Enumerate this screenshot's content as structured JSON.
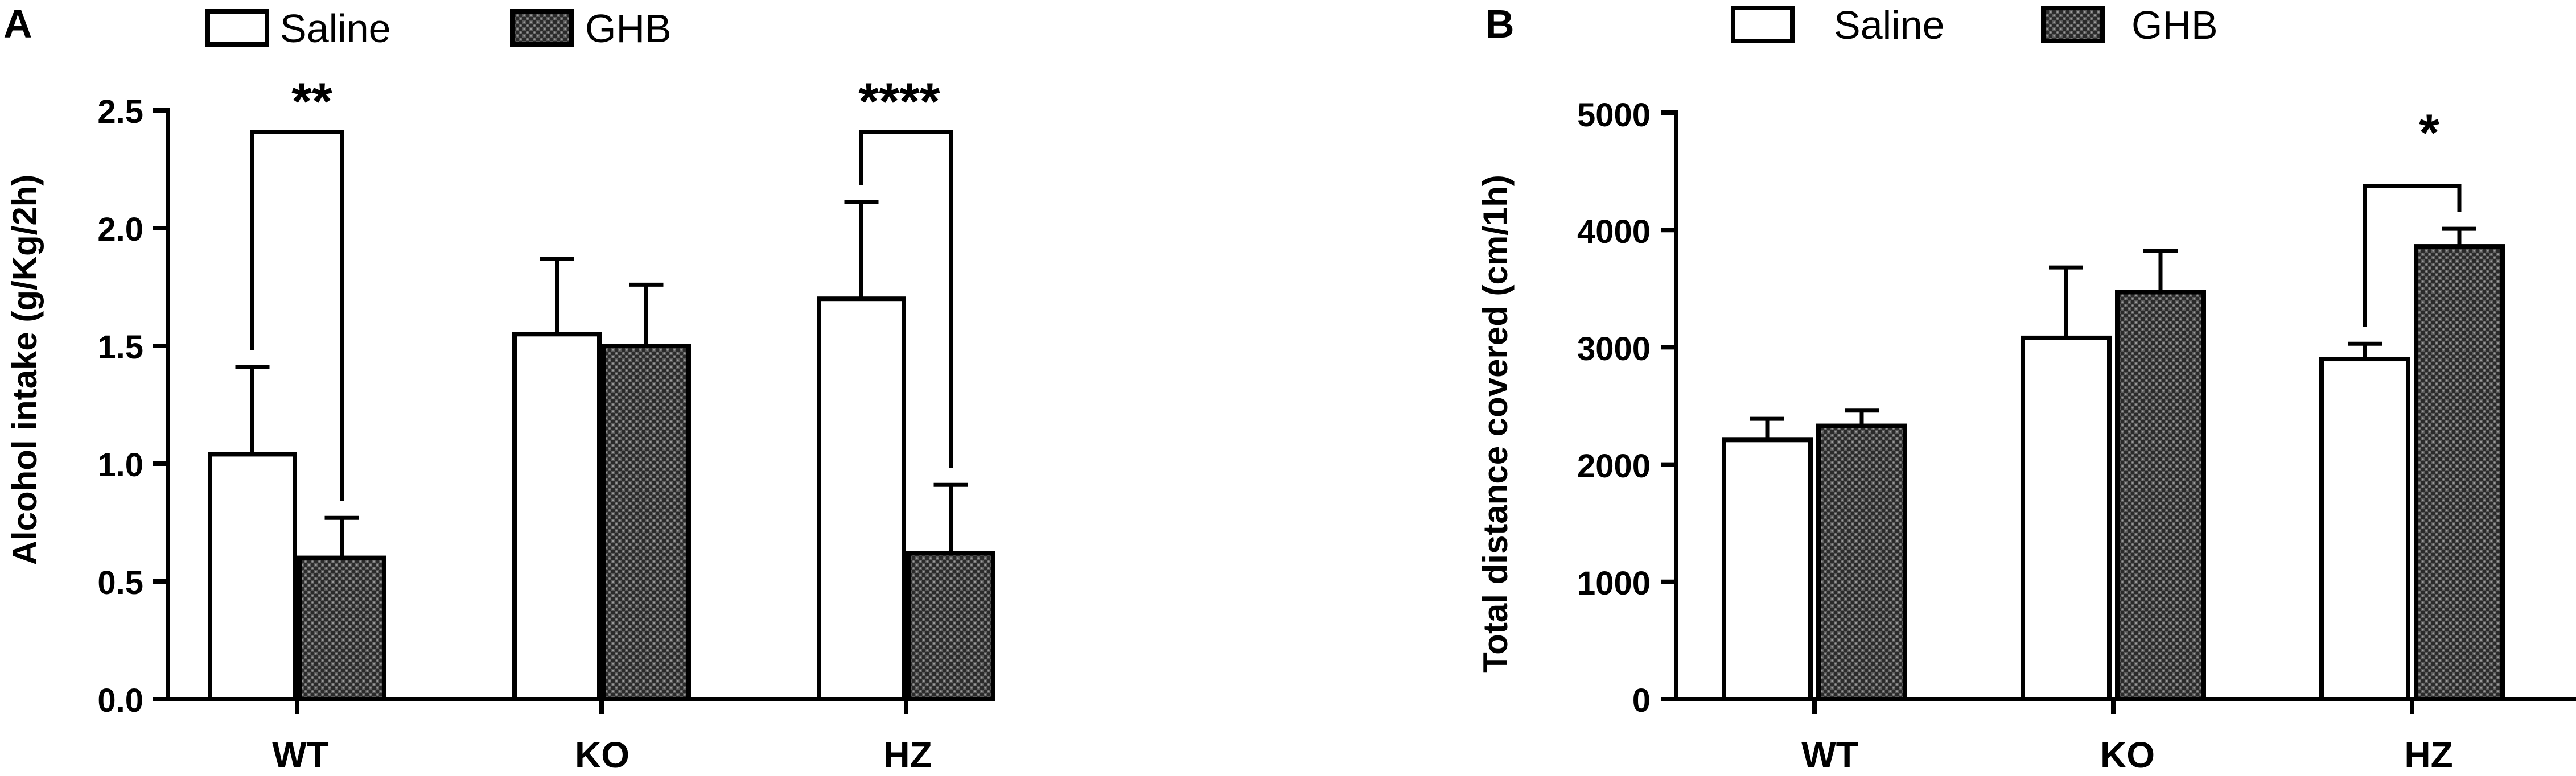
{
  "chart_data": [
    {
      "type": "bar",
      "panel": "A",
      "legend": {
        "position": "top",
        "entries": [
          "Saline",
          "GHB"
        ]
      },
      "categories": [
        "WT",
        "KO",
        "HZ"
      ],
      "ylabel": "Alcohol intake  (g/Kg/2h)",
      "ylim": [
        0,
        2.5
      ],
      "yticks": [
        "0.0",
        "0.5",
        "1.0",
        "1.5",
        "2.0",
        "2.5"
      ],
      "series": [
        {
          "name": "Saline",
          "values": [
            1.04,
            1.55,
            1.7
          ],
          "errors": [
            0.37,
            0.32,
            0.41
          ]
        },
        {
          "name": "GHB",
          "values": [
            0.6,
            1.5,
            0.62
          ],
          "errors": [
            0.17,
            0.26,
            0.29
          ]
        }
      ],
      "significance": [
        {
          "category": "WT",
          "label": "**"
        },
        {
          "category": "HZ",
          "label": "****"
        }
      ]
    },
    {
      "type": "bar",
      "panel": "B",
      "legend": {
        "position": "top",
        "entries": [
          "Saline",
          "GHB"
        ]
      },
      "categories": [
        "WT",
        "KO",
        "HZ"
      ],
      "ylabel": "Total distance covered (cm/1h)",
      "ylim": [
        0,
        5000
      ],
      "yticks": [
        "0",
        "1000",
        "2000",
        "3000",
        "4000",
        "5000"
      ],
      "series": [
        {
          "name": "Saline",
          "values": [
            2210,
            3080,
            2900
          ],
          "errors": [
            180,
            600,
            130
          ]
        },
        {
          "name": "GHB",
          "values": [
            2330,
            3470,
            3860
          ],
          "errors": [
            130,
            350,
            150
          ]
        }
      ],
      "significance": [
        {
          "category": "HZ",
          "label": "*"
        }
      ]
    }
  ]
}
